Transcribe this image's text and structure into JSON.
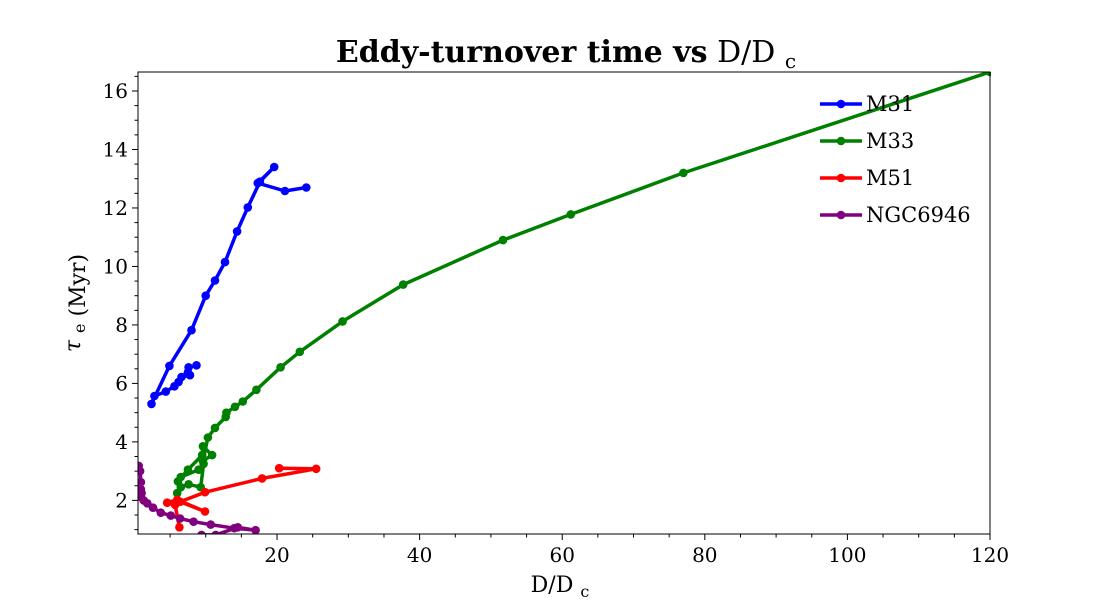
{
  "chart_data": {
    "type": "line",
    "title_bold": "Eddy-turnover time vs",
    "title_math": "D/D",
    "title_math_sub": "c",
    "xlabel_main": "D/D",
    "xlabel_sub": "c",
    "ylabel_symbol": "τ",
    "ylabel_sub": "e",
    "ylabel_rest": "(Myr)",
    "xlim": [
      0.5,
      120
    ],
    "ylim": [
      0.85,
      16.65
    ],
    "xticks": [
      20,
      40,
      60,
      80,
      100,
      120
    ],
    "xtick_labels": [
      "20",
      "40",
      "60",
      "80",
      "100",
      "120"
    ],
    "yticks": [
      2,
      4,
      6,
      8,
      10,
      12,
      14,
      16
    ],
    "ytick_labels": [
      "2",
      "4",
      "6",
      "8",
      "10",
      "12",
      "14",
      "16"
    ],
    "grid": false,
    "legend_position": "top-right",
    "series": [
      {
        "name": "M31",
        "color": "#0000ff",
        "x": [
          8.7,
          7.6,
          7.8,
          6.6,
          7.5,
          6.2,
          5.6,
          4.4,
          2.8,
          2.4,
          4.9,
          8.0,
          10.0,
          11.3,
          12.7,
          14.4,
          15.9,
          17.6,
          19.6,
          17.3,
          21.1,
          24.1
        ],
        "y": [
          6.62,
          6.55,
          6.28,
          6.22,
          6.38,
          6.05,
          5.9,
          5.72,
          5.57,
          5.3,
          6.6,
          7.82,
          9.0,
          9.52,
          10.15,
          11.2,
          12.02,
          12.9,
          13.4,
          12.85,
          12.58,
          12.7
        ]
      },
      {
        "name": "M33",
        "color": "#008000",
        "x": [
          6.0,
          6.5,
          7.6,
          9.3,
          9.7,
          9.0,
          6.5,
          6.1,
          7.5,
          9.5,
          9.6,
          10.9,
          9.6,
          10.3,
          11.3,
          12.8,
          12.9,
          14.1,
          15.2,
          17.1,
          20.5,
          23.2,
          29.2,
          37.7,
          51.7,
          61.2,
          77.0,
          120.0
        ],
        "y": [
          2.25,
          2.45,
          2.55,
          2.45,
          3.25,
          3.05,
          2.8,
          2.65,
          3.05,
          3.55,
          3.85,
          3.55,
          3.35,
          4.15,
          4.48,
          4.85,
          5.0,
          5.2,
          5.38,
          5.78,
          6.55,
          7.08,
          8.12,
          9.38,
          10.9,
          11.78,
          13.2,
          16.65
        ]
      },
      {
        "name": "M51",
        "color": "#ff0000",
        "x": [
          6.3,
          5.7,
          4.6,
          6.0,
          9.9,
          6.4,
          9.9,
          17.9,
          25.5,
          20.3
        ],
        "y": [
          1.08,
          1.85,
          1.92,
          2.02,
          1.62,
          1.95,
          2.28,
          2.75,
          3.08,
          3.1
        ]
      },
      {
        "name": "NGC6946",
        "color": "#800080",
        "x": [
          0.6,
          0.8,
          0.9,
          0.9,
          1.0,
          0.9,
          1.3,
          1.8,
          2.6,
          3.7,
          5.1,
          6.4,
          8.3,
          10.7,
          14.0,
          17.0,
          14.5,
          11.4,
          9.4
        ],
        "y": [
          3.18,
          3.0,
          2.62,
          2.38,
          2.25,
          2.12,
          2.0,
          1.9,
          1.75,
          1.58,
          1.48,
          1.38,
          1.27,
          1.17,
          1.05,
          0.98,
          1.08,
          0.82,
          0.82
        ]
      }
    ]
  }
}
